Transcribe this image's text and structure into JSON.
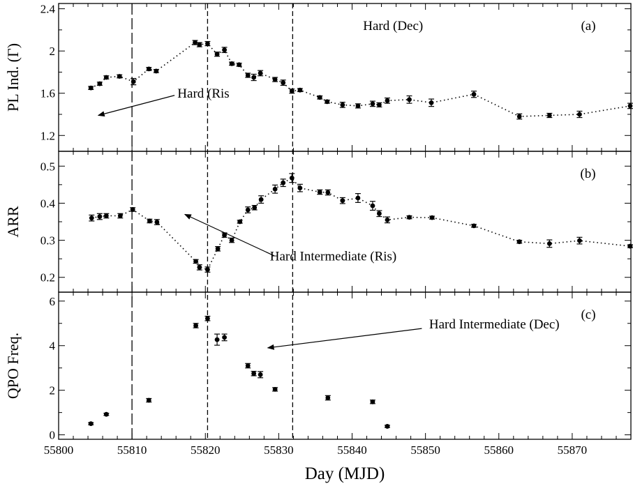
{
  "chart_data": {
    "type": "scatter",
    "shared_x": {
      "label": "Day (MJD)",
      "range": [
        55800,
        55878
      ],
      "ticks": [
        55800,
        55810,
        55820,
        55830,
        55840,
        55850,
        55860,
        55870
      ],
      "tick_labels": [
        "55800",
        "55810",
        "55820",
        "55830",
        "55840",
        "55850",
        "55860",
        "55870"
      ]
    },
    "vlines": [
      {
        "x": 55810.0,
        "style": "long-dash"
      },
      {
        "x": 55820.3,
        "style": "short-dash"
      },
      {
        "x": 55831.9,
        "style": "short-dash"
      }
    ],
    "panels": [
      {
        "id": "a",
        "panel_label": "(a)",
        "ylabel": "PL Ind. (Γ)",
        "ylim": [
          1.05,
          2.45
        ],
        "yticks": [
          1.2,
          1.6,
          2,
          2.4
        ],
        "ytick_labels": [
          "1.2",
          "1.6",
          "2",
          "2.4"
        ],
        "connect_dotted": true,
        "x": [
          55804.4,
          55805.6,
          55806.5,
          55808.3,
          55810.2,
          55812.3,
          55813.3,
          55818.6,
          55819.2,
          55820.3,
          55821.6,
          55822.6,
          55823.6,
          55824.6,
          55825.8,
          55826.6,
          55827.5,
          55829.5,
          55830.6,
          55831.8,
          55832.9,
          55835.6,
          55836.6,
          55838.7,
          55840.8,
          55842.8,
          55843.7,
          55844.8,
          55847.8,
          55850.8,
          55856.6,
          55862.8,
          55866.9,
          55871.0,
          55877.9
        ],
        "y": [
          1.65,
          1.69,
          1.75,
          1.76,
          1.71,
          1.83,
          1.81,
          2.08,
          2.06,
          2.07,
          1.97,
          2.01,
          1.88,
          1.87,
          1.77,
          1.75,
          1.79,
          1.73,
          1.7,
          1.62,
          1.63,
          1.56,
          1.52,
          1.49,
          1.48,
          1.5,
          1.49,
          1.53,
          1.54,
          1.51,
          1.59,
          1.38,
          1.39,
          1.4,
          1.48
        ],
        "yerr": [
          0.015,
          0.015,
          0.015,
          0.015,
          0.03,
          0.015,
          0.015,
          0.02,
          0.02,
          0.02,
          0.02,
          0.025,
          0.015,
          0.015,
          0.02,
          0.03,
          0.025,
          0.02,
          0.025,
          0.02,
          0.015,
          0.015,
          0.015,
          0.025,
          0.02,
          0.025,
          0.02,
          0.025,
          0.035,
          0.035,
          0.03,
          0.025,
          0.02,
          0.03,
          0.025
        ],
        "annotations": [
          {
            "text": "Hard (Dec)",
            "x": 55841.5,
            "y": 2.2
          },
          {
            "text": "Hard (Ris",
            "x": 55816.2,
            "y": 1.56
          }
        ],
        "arrows": [
          {
            "from": [
              55815.8,
              1.58
            ],
            "to": [
              55805.4,
              1.39
            ]
          }
        ]
      },
      {
        "id": "b",
        "panel_label": "(b)",
        "ylabel": "ARR",
        "ylim": [
          0.16,
          0.54
        ],
        "yticks": [
          0.2,
          0.3,
          0.4,
          0.5
        ],
        "ytick_labels": [
          "0.2",
          "0.3",
          "0.4",
          "0.5"
        ],
        "connect_dotted": true,
        "x": [
          55804.5,
          55805.6,
          55806.5,
          55808.4,
          55810.1,
          55812.4,
          55813.4,
          55818.7,
          55819.2,
          55820.3,
          55821.7,
          55822.6,
          55823.6,
          55824.7,
          55825.8,
          55826.7,
          55827.6,
          55829.5,
          55830.6,
          55831.8,
          55832.9,
          55835.6,
          55836.7,
          55838.7,
          55840.8,
          55842.8,
          55843.7,
          55844.8,
          55847.8,
          55850.9,
          55856.6,
          55862.8,
          55866.9,
          55871.0,
          55877.9
        ],
        "y": [
          0.36,
          0.364,
          0.366,
          0.366,
          0.383,
          0.352,
          0.349,
          0.243,
          0.227,
          0.221,
          0.277,
          0.314,
          0.3,
          0.35,
          0.382,
          0.388,
          0.41,
          0.438,
          0.455,
          0.468,
          0.441,
          0.43,
          0.429,
          0.407,
          0.414,
          0.393,
          0.372,
          0.355,
          0.362,
          0.361,
          0.339,
          0.296,
          0.291,
          0.299,
          0.284
        ],
        "yerr": [
          0.008,
          0.008,
          0.006,
          0.006,
          0.005,
          0.005,
          0.007,
          0.005,
          0.007,
          0.007,
          0.006,
          0.006,
          0.006,
          0.004,
          0.008,
          0.006,
          0.01,
          0.011,
          0.01,
          0.012,
          0.01,
          0.006,
          0.007,
          0.008,
          0.012,
          0.012,
          0.008,
          0.008,
          0.004,
          0.004,
          0.004,
          0.004,
          0.01,
          0.009,
          0.004
        ],
        "annotations": [
          {
            "text": "Hard Intermediate (Ris)",
            "x": 55828.8,
            "y": 0.246
          }
        ],
        "arrows": [
          {
            "from": [
              55829.4,
              0.258
            ],
            "to": [
              55817.2,
              0.37
            ]
          }
        ]
      },
      {
        "id": "c",
        "panel_label": "(c)",
        "ylabel": "QPO Freq.",
        "ylim": [
          -0.2,
          6.4
        ],
        "yticks": [
          0,
          2,
          4,
          6
        ],
        "ytick_labels": [
          "0",
          "2",
          "4",
          "6"
        ],
        "connect_dotted": false,
        "x": [
          55804.4,
          55806.5,
          55812.3,
          55818.7,
          55820.3,
          55821.6,
          55822.6,
          55825.8,
          55826.6,
          55827.5,
          55829.5,
          55836.7,
          55842.8,
          55844.8
        ],
        "y": [
          0.5,
          0.92,
          1.55,
          4.9,
          5.22,
          4.27,
          4.37,
          3.1,
          2.75,
          2.7,
          2.04,
          1.66,
          1.48,
          0.38
        ],
        "yerr": [
          0.05,
          0.05,
          0.08,
          0.1,
          0.1,
          0.25,
          0.15,
          0.1,
          0.1,
          0.14,
          0.08,
          0.1,
          0.08,
          0.05
        ],
        "annotations": [
          {
            "text": "Hard Intermediate (Dec)",
            "x": 55850.5,
            "y": 4.77
          }
        ],
        "arrows": [
          {
            "from": [
              55849.5,
              4.77
            ],
            "to": [
              55828.5,
              3.9
            ]
          }
        ]
      }
    ]
  }
}
